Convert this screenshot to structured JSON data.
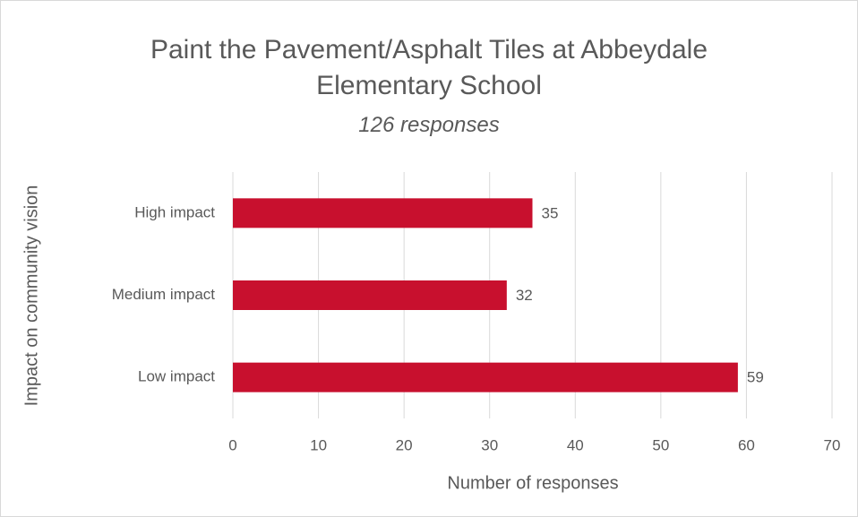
{
  "chart_data": {
    "type": "barh",
    "title": "Paint the Pavement/Asphalt Tiles at Abbeydale Elementary School",
    "subtitle": "126 responses",
    "categories": [
      "High impact",
      "Medium impact",
      "Low impact"
    ],
    "values": [
      35,
      32,
      59
    ],
    "color": "#c8102e",
    "xlabel": "Number of responses",
    "ylabel": "Impact on community vision",
    "xlim": [
      0,
      70
    ],
    "xticks": [
      0,
      10,
      20,
      30,
      40,
      50,
      60,
      70
    ],
    "grid": true
  }
}
